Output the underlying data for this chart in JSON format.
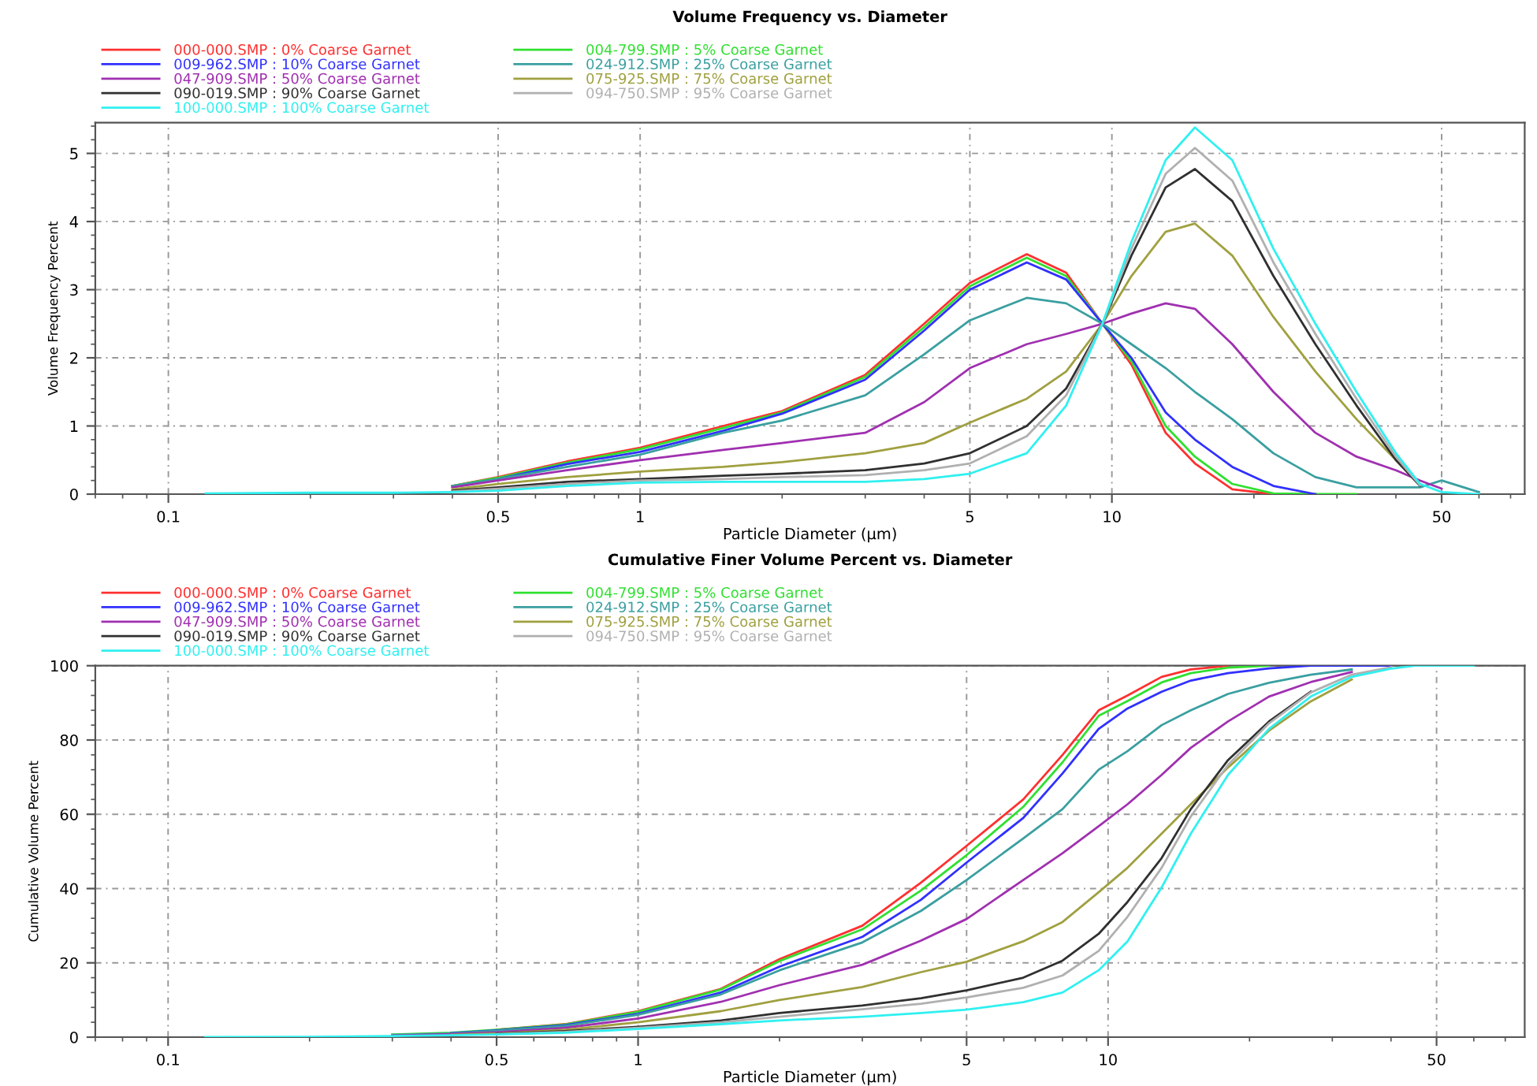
{
  "chart_data": [
    {
      "type": "line",
      "title": "Volume Frequency vs. Diameter",
      "xlabel": "Particle Diameter (µm)",
      "ylabel": "Volume Frequency Percent",
      "log": "x",
      "grid": true,
      "legend": "top left",
      "xlim": [
        0.07,
        75
      ],
      "xticks": [
        0.1,
        0.5,
        1,
        5,
        10,
        50
      ],
      "ylim": [
        0,
        5.45
      ],
      "yticks": [
        0,
        1,
        2,
        3,
        4,
        5
      ],
      "x": [
        0.12,
        0.2,
        0.3,
        0.4,
        0.5,
        0.7,
        1,
        1.5,
        2,
        3,
        4,
        5,
        6.6,
        8,
        9.55,
        11,
        13,
        15,
        18,
        22,
        27,
        33,
        40,
        45,
        50,
        60
      ],
      "series": [
        {
          "name": "000-000.SMP : 0% Coarse Garnet",
          "color": "#ff3030",
          "values": [
            null,
            null,
            null,
            0.12,
            0.25,
            0.48,
            0.68,
            1.0,
            1.22,
            1.75,
            2.5,
            3.1,
            3.52,
            3.25,
            2.5,
            1.9,
            0.9,
            0.45,
            0.07,
            0,
            0,
            null,
            null,
            null,
            null,
            null
          ]
        },
        {
          "name": "004-799.SMP : 5% Coarse Garnet",
          "color": "#30e030",
          "values": [
            null,
            null,
            null,
            0.12,
            0.24,
            0.46,
            0.66,
            0.97,
            1.2,
            1.72,
            2.45,
            3.05,
            3.47,
            3.2,
            2.5,
            1.95,
            1.0,
            0.55,
            0.15,
            0.01,
            0,
            0,
            null,
            null,
            null,
            null
          ]
        },
        {
          "name": "009-962.SMP : 10% Coarse Garnet",
          "color": "#3030ff",
          "values": [
            null,
            null,
            null,
            0.11,
            0.22,
            0.44,
            0.62,
            0.93,
            1.18,
            1.68,
            2.4,
            3.0,
            3.4,
            3.15,
            2.5,
            2.0,
            1.2,
            0.8,
            0.4,
            0.12,
            0,
            null,
            null,
            null,
            null,
            null
          ]
        },
        {
          "name": "024-912.SMP : 25% Coarse Garnet",
          "color": "#3a9fa0",
          "values": [
            null,
            null,
            null,
            0.12,
            0.22,
            0.4,
            0.58,
            0.9,
            1.08,
            1.45,
            2.05,
            2.55,
            2.88,
            2.8,
            2.5,
            2.2,
            1.85,
            1.5,
            1.1,
            0.6,
            0.25,
            0.1,
            0.1,
            0.1,
            0.2,
            0.03
          ]
        },
        {
          "name": "047-909.SMP : 50% Coarse Garnet",
          "color": "#a030b0",
          "values": [
            null,
            null,
            null,
            0.1,
            0.2,
            0.35,
            0.5,
            0.65,
            0.75,
            0.9,
            1.35,
            1.85,
            2.2,
            2.35,
            2.5,
            2.65,
            2.8,
            2.72,
            2.2,
            1.5,
            0.9,
            0.55,
            0.35,
            0.2,
            0.08,
            null
          ]
        },
        {
          "name": "075-925.SMP : 75% Coarse Garnet",
          "color": "#a0a040",
          "values": [
            null,
            null,
            null,
            0.07,
            0.15,
            0.25,
            0.33,
            0.4,
            0.47,
            0.6,
            0.75,
            1.05,
            1.4,
            1.8,
            2.5,
            3.2,
            3.85,
            3.97,
            3.5,
            2.6,
            1.8,
            1.1,
            0.5,
            0.15,
            null,
            null
          ]
        },
        {
          "name": "090-019.SMP : 90% Coarse Garnet",
          "color": "#303030",
          "values": [
            null,
            null,
            null,
            0.05,
            0.1,
            0.18,
            0.22,
            0.27,
            0.3,
            0.35,
            0.45,
            0.6,
            1.0,
            1.55,
            2.5,
            3.5,
            4.5,
            4.77,
            4.3,
            3.2,
            2.2,
            1.3,
            0.5,
            0.12,
            null,
            null
          ]
        },
        {
          "name": "094-750.SMP : 95% Coarse Garnet",
          "color": "#b0b0b0",
          "values": [
            null,
            null,
            null,
            0.04,
            0.08,
            0.15,
            0.2,
            0.22,
            0.25,
            0.28,
            0.35,
            0.45,
            0.85,
            1.45,
            2.5,
            3.6,
            4.7,
            5.08,
            4.6,
            3.4,
            2.35,
            1.4,
            0.55,
            0.13,
            null,
            null
          ]
        },
        {
          "name": "100-000.SMP : 100% Coarse Garnet",
          "color": "#30f0f0",
          "values": [
            0.01,
            0.02,
            0.02,
            0.03,
            0.05,
            0.12,
            0.17,
            0.18,
            0.18,
            0.18,
            0.22,
            0.3,
            0.6,
            1.3,
            2.5,
            3.7,
            4.9,
            5.38,
            4.9,
            3.6,
            2.5,
            1.5,
            0.6,
            0.15,
            0.03,
            0
          ]
        }
      ]
    },
    {
      "type": "line",
      "title": "Cumulative Finer Volume Percent vs. Diameter",
      "xlabel": "Particle Diameter (µm)",
      "ylabel": "Cumulative Volume Percent",
      "log": "x",
      "grid": true,
      "legend": "top left",
      "xlim": [
        0.07,
        77
      ],
      "xticks": [
        0.1,
        0.5,
        1,
        5,
        10,
        50
      ],
      "ylim": [
        0,
        100
      ],
      "yticks": [
        0,
        20,
        40,
        60,
        80,
        100
      ],
      "x": [
        0.12,
        0.2,
        0.3,
        0.4,
        0.5,
        0.7,
        1,
        1.5,
        2,
        3,
        4,
        5,
        6.6,
        8,
        9.55,
        11,
        13,
        15,
        18,
        22,
        27,
        33,
        40,
        45,
        50,
        60
      ],
      "series": [
        {
          "name": "000-000.SMP : 0% Coarse Garnet",
          "color": "#ff3030",
          "values": [
            null,
            null,
            null,
            null,
            2,
            3.5,
            7,
            13,
            21,
            30,
            41.6,
            51.5,
            64,
            76,
            88,
            92,
            97,
            99,
            100,
            null,
            null,
            null,
            null,
            null,
            null,
            null
          ]
        },
        {
          "name": "004-799.SMP : 5% Coarse Garnet",
          "color": "#30e030",
          "values": [
            null,
            null,
            0.7,
            1.2,
            2,
            3.4,
            6.8,
            12.8,
            20.5,
            29,
            39.5,
            49,
            62,
            74,
            86.5,
            90.5,
            95.5,
            98,
            99.5,
            100,
            null,
            null,
            null,
            null,
            null,
            null
          ]
        },
        {
          "name": "009-962.SMP : 10% Coarse Garnet",
          "color": "#3030ff",
          "values": [
            null,
            null,
            null,
            1.1,
            1.8,
            3.2,
            6.3,
            12,
            19,
            27,
            37,
            47,
            59,
            71,
            83,
            88.5,
            93,
            96,
            98,
            99.3,
            100,
            100,
            100,
            null,
            null,
            null
          ]
        },
        {
          "name": "024-912.SMP : 25% Coarse Garnet",
          "color": "#3a9fa0",
          "values": [
            null,
            null,
            0.6,
            1.0,
            1.7,
            3,
            6,
            11.5,
            18,
            25.5,
            34,
            42.3,
            53.5,
            61.4,
            72,
            77,
            84,
            88,
            92.4,
            95.4,
            97.6,
            99,
            null,
            null,
            null,
            null
          ]
        },
        {
          "name": "047-909.SMP : 50% Coarse Garnet",
          "color": "#a030b0",
          "values": [
            null,
            null,
            0.4,
            0.8,
            1.3,
            2.5,
            5,
            9.5,
            14,
            19.5,
            26,
            31.8,
            42.3,
            49.5,
            56.8,
            62.7,
            70.6,
            77.9,
            85,
            91.7,
            95.6,
            98.3,
            null,
            null,
            null,
            null
          ]
        },
        {
          "name": "075-925.SMP : 75% Coarse Garnet",
          "color": "#a0a040",
          "values": [
            null,
            null,
            null,
            0.6,
            1,
            2,
            4,
            7,
            10,
            13.5,
            17.5,
            20.3,
            25.8,
            31,
            39,
            45.6,
            54.8,
            62.7,
            72.6,
            82.5,
            90.4,
            96.3,
            null,
            null,
            null,
            null
          ]
        },
        {
          "name": "090-019.SMP : 90% Coarse Garnet",
          "color": "#303030",
          "values": [
            null,
            null,
            null,
            null,
            0.9,
            1.6,
            2.8,
            4.5,
            6.5,
            8.5,
            10.5,
            12.6,
            16,
            20.6,
            27.8,
            36.4,
            48.2,
            61.4,
            74.6,
            85,
            93,
            null,
            null,
            null,
            null,
            null
          ]
        },
        {
          "name": "094-750.SMP : 95% Coarse Garnet",
          "color": "#b0b0b0",
          "values": [
            null,
            null,
            null,
            null,
            0.8,
            1.4,
            2.5,
            4,
            5.5,
            7.5,
            9,
            10.7,
            13.3,
            16.6,
            23.2,
            32.4,
            45.6,
            59.4,
            73.3,
            84.5,
            92.8,
            97.6,
            99.6,
            null,
            null,
            null
          ]
        },
        {
          "name": "100-000.SMP : 100% Coarse Garnet",
          "color": "#30f0f0",
          "values": [
            0,
            0.1,
            0.3,
            0.5,
            0.7,
            1.2,
            2.2,
            3.5,
            4.5,
            5.5,
            6.5,
            7.4,
            9.4,
            12,
            18,
            25.8,
            40.3,
            54.8,
            70.6,
            83,
            91.7,
            97,
            99.2,
            100,
            100,
            100
          ]
        }
      ]
    }
  ]
}
